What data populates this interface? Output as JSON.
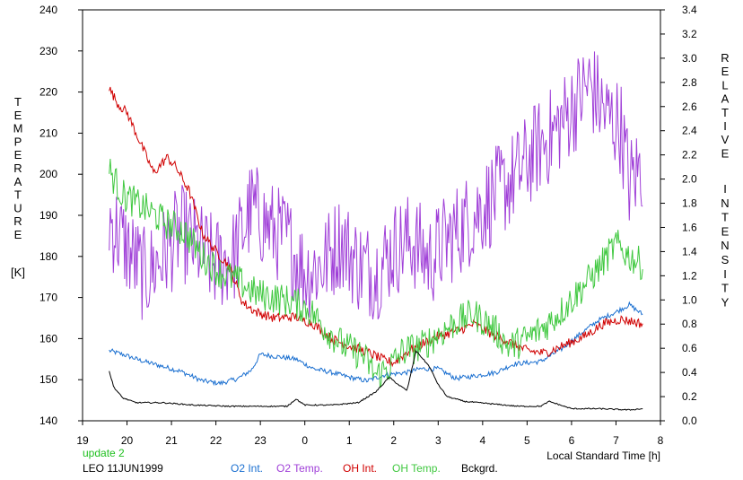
{
  "chart_data": {
    "type": "line",
    "xlabel": "Local Standard Time [h]",
    "x_ticks": [
      "19",
      "20",
      "21",
      "22",
      "23",
      "0",
      "1",
      "2",
      "3",
      "4",
      "5",
      "6",
      "7",
      "8"
    ],
    "xlim": [
      19,
      32
    ],
    "left_axis": {
      "label_letters": [
        "T",
        "E",
        "M",
        "P",
        "E",
        "R",
        "A",
        "T",
        "U",
        "R",
        "E"
      ],
      "unit": "[K]",
      "ylim": [
        140,
        240
      ],
      "ticks": [
        "140",
        "150",
        "160",
        "170",
        "180",
        "190",
        "200",
        "210",
        "220",
        "230",
        "240"
      ]
    },
    "right_axis": {
      "label_letters_1": [
        "R",
        "E",
        "L",
        "A",
        "T",
        "I",
        "V",
        "E"
      ],
      "label_letters_2": [
        "I",
        "N",
        "T",
        "E",
        "N",
        "S",
        "I",
        "T",
        "Y"
      ],
      "ylim": [
        0.0,
        3.4
      ],
      "ticks": [
        "0.0",
        "0.2",
        "0.4",
        "0.6",
        "0.8",
        "1.0",
        "1.2",
        "1.4",
        "1.6",
        "1.8",
        "2.0",
        "2.2",
        "2.4",
        "2.6",
        "2.8",
        "3.0",
        "3.2",
        "3.4"
      ]
    },
    "notes": {
      "update": "update 2",
      "site": "LEO 11JUN1999"
    },
    "series": [
      {
        "name": "O2 Int.",
        "axis": "right",
        "color": "#1a6fd0",
        "noise": 0.02,
        "points": [
          [
            19.6,
            0.58
          ],
          [
            19.9,
            0.55
          ],
          [
            20.3,
            0.5
          ],
          [
            20.7,
            0.46
          ],
          [
            21.2,
            0.41
          ],
          [
            21.7,
            0.33
          ],
          [
            22.1,
            0.31
          ],
          [
            22.5,
            0.35
          ],
          [
            22.8,
            0.42
          ],
          [
            23.0,
            0.55
          ],
          [
            23.4,
            0.53
          ],
          [
            23.8,
            0.51
          ],
          [
            24.2,
            0.43
          ],
          [
            24.6,
            0.4
          ],
          [
            25.0,
            0.36
          ],
          [
            25.4,
            0.33
          ],
          [
            25.8,
            0.38
          ],
          [
            26.3,
            0.4
          ],
          [
            26.6,
            0.43
          ],
          [
            27.0,
            0.43
          ],
          [
            27.4,
            0.35
          ],
          [
            27.8,
            0.37
          ],
          [
            28.3,
            0.4
          ],
          [
            28.7,
            0.47
          ],
          [
            29.3,
            0.49
          ],
          [
            29.8,
            0.6
          ],
          [
            30.2,
            0.72
          ],
          [
            30.6,
            0.83
          ],
          [
            31.0,
            0.9
          ],
          [
            31.3,
            0.96
          ],
          [
            31.6,
            0.88
          ]
        ]
      },
      {
        "name": "O2 Temp.",
        "axis": "left",
        "color": "#a040d8",
        "noise": 12,
        "points": [
          [
            19.6,
            189
          ],
          [
            20.0,
            182
          ],
          [
            20.4,
            175
          ],
          [
            20.8,
            180
          ],
          [
            21.2,
            186
          ],
          [
            21.6,
            182
          ],
          [
            22.0,
            178
          ],
          [
            22.4,
            180
          ],
          [
            22.8,
            192
          ],
          [
            23.2,
            187
          ],
          [
            23.6,
            184
          ],
          [
            24.0,
            176
          ],
          [
            24.4,
            178
          ],
          [
            24.8,
            184
          ],
          [
            25.2,
            178
          ],
          [
            25.6,
            176
          ],
          [
            26.0,
            182
          ],
          [
            26.4,
            184
          ],
          [
            26.8,
            179
          ],
          [
            27.2,
            184
          ],
          [
            27.6,
            188
          ],
          [
            28.0,
            192
          ],
          [
            28.4,
            196
          ],
          [
            28.8,
            200
          ],
          [
            29.2,
            206
          ],
          [
            29.6,
            210
          ],
          [
            30.0,
            216
          ],
          [
            30.4,
            222
          ],
          [
            30.8,
            214
          ],
          [
            31.1,
            212
          ],
          [
            31.3,
            198
          ],
          [
            31.6,
            202
          ]
        ]
      },
      {
        "name": "OH Int.",
        "axis": "right",
        "color": "#d00000",
        "noise": 0.04,
        "points": [
          [
            19.6,
            2.75
          ],
          [
            19.8,
            2.62
          ],
          [
            20.0,
            2.55
          ],
          [
            20.3,
            2.3
          ],
          [
            20.6,
            2.05
          ],
          [
            20.9,
            2.18
          ],
          [
            21.1,
            2.1
          ],
          [
            21.4,
            1.9
          ],
          [
            21.7,
            1.55
          ],
          [
            22.0,
            1.4
          ],
          [
            22.3,
            1.28
          ],
          [
            22.6,
            0.98
          ],
          [
            22.9,
            0.9
          ],
          [
            23.3,
            0.85
          ],
          [
            23.8,
            0.86
          ],
          [
            24.2,
            0.8
          ],
          [
            24.6,
            0.68
          ],
          [
            25.0,
            0.62
          ],
          [
            25.4,
            0.57
          ],
          [
            25.8,
            0.5
          ],
          [
            26.0,
            0.48
          ],
          [
            26.3,
            0.57
          ],
          [
            26.6,
            0.63
          ],
          [
            27.0,
            0.7
          ],
          [
            27.4,
            0.74
          ],
          [
            27.8,
            0.8
          ],
          [
            28.2,
            0.72
          ],
          [
            28.6,
            0.65
          ],
          [
            29.0,
            0.58
          ],
          [
            29.4,
            0.56
          ],
          [
            29.8,
            0.62
          ],
          [
            30.3,
            0.7
          ],
          [
            30.7,
            0.8
          ],
          [
            31.1,
            0.84
          ],
          [
            31.4,
            0.82
          ],
          [
            31.6,
            0.8
          ]
        ]
      },
      {
        "name": "OH Temp.",
        "axis": "left",
        "color": "#40c840",
        "noise": 4,
        "points": [
          [
            19.6,
            201
          ],
          [
            19.9,
            195
          ],
          [
            20.2,
            193
          ],
          [
            20.5,
            191
          ],
          [
            20.9,
            188
          ],
          [
            21.3,
            186
          ],
          [
            21.7,
            180
          ],
          [
            22.1,
            176
          ],
          [
            22.5,
            174
          ],
          [
            22.9,
            171
          ],
          [
            23.3,
            170
          ],
          [
            23.7,
            169
          ],
          [
            24.1,
            167
          ],
          [
            24.5,
            162
          ],
          [
            24.9,
            158
          ],
          [
            25.3,
            156
          ],
          [
            25.6,
            151
          ],
          [
            25.9,
            153
          ],
          [
            26.2,
            157
          ],
          [
            26.6,
            158
          ],
          [
            27.0,
            161
          ],
          [
            27.4,
            164
          ],
          [
            27.8,
            166
          ],
          [
            28.2,
            163
          ],
          [
            28.6,
            158
          ],
          [
            29.0,
            160
          ],
          [
            29.4,
            163
          ],
          [
            29.8,
            167
          ],
          [
            30.2,
            172
          ],
          [
            30.6,
            177
          ],
          [
            31.0,
            183
          ],
          [
            31.3,
            180
          ],
          [
            31.6,
            178
          ]
        ]
      },
      {
        "name": "Bckgrd.",
        "axis": "right",
        "color": "#000000",
        "noise": 0.005,
        "points": [
          [
            19.6,
            0.41
          ],
          [
            19.7,
            0.28
          ],
          [
            19.9,
            0.19
          ],
          [
            20.2,
            0.15
          ],
          [
            20.8,
            0.15
          ],
          [
            21.5,
            0.13
          ],
          [
            22.3,
            0.12
          ],
          [
            23.0,
            0.12
          ],
          [
            23.6,
            0.12
          ],
          [
            23.8,
            0.18
          ],
          [
            24.0,
            0.13
          ],
          [
            24.6,
            0.13
          ],
          [
            25.2,
            0.15
          ],
          [
            25.6,
            0.24
          ],
          [
            25.9,
            0.36
          ],
          [
            26.1,
            0.3
          ],
          [
            26.3,
            0.25
          ],
          [
            26.5,
            0.58
          ],
          [
            26.8,
            0.45
          ],
          [
            27.0,
            0.3
          ],
          [
            27.2,
            0.2
          ],
          [
            27.6,
            0.16
          ],
          [
            28.2,
            0.14
          ],
          [
            28.8,
            0.12
          ],
          [
            29.3,
            0.12
          ],
          [
            29.5,
            0.16
          ],
          [
            30.0,
            0.1
          ],
          [
            30.6,
            0.1
          ],
          [
            31.3,
            0.09
          ],
          [
            31.6,
            0.1
          ]
        ]
      }
    ]
  }
}
